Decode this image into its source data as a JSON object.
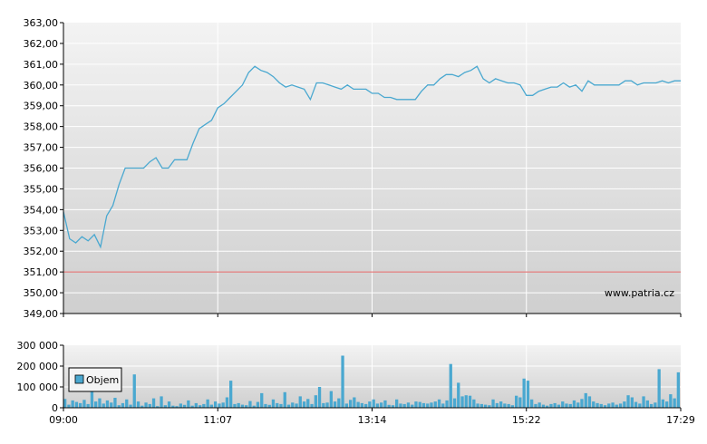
{
  "watermark": "www.patria.cz",
  "chart_data": [
    {
      "type": "line",
      "title": "",
      "xlabel": "",
      "ylabel": "",
      "ylim": [
        349,
        363
      ],
      "yticks": [
        "363,00",
        "362,00",
        "361,00",
        "360,00",
        "359,00",
        "358,00",
        "357,00",
        "356,00",
        "355,00",
        "354,00",
        "353,00",
        "352,00",
        "351,00",
        "350,00",
        "349,00"
      ],
      "xticks": [
        "09:00",
        "11:07",
        "13:14",
        "15:22",
        "17:29"
      ],
      "grid": true,
      "reference_line": {
        "value": 351.0,
        "color": "#e06060"
      },
      "series": [
        {
          "name": "",
          "color": "#4aa8d0",
          "x": [
            0,
            0.01,
            0.02,
            0.03,
            0.04,
            0.05,
            0.06,
            0.07,
            0.08,
            0.09,
            0.1,
            0.11,
            0.12,
            0.13,
            0.14,
            0.15,
            0.16,
            0.17,
            0.18,
            0.19,
            0.2,
            0.21,
            0.22,
            0.23,
            0.24,
            0.25,
            0.26,
            0.27,
            0.28,
            0.29,
            0.3,
            0.31,
            0.32,
            0.33,
            0.34,
            0.35,
            0.36,
            0.37,
            0.38,
            0.39,
            0.4,
            0.41,
            0.42,
            0.43,
            0.44,
            0.45,
            0.46,
            0.47,
            0.48,
            0.49,
            0.5,
            0.51,
            0.52,
            0.53,
            0.54,
            0.55,
            0.56,
            0.57,
            0.58,
            0.59,
            0.6,
            0.61,
            0.62,
            0.63,
            0.64,
            0.65,
            0.66,
            0.67,
            0.68,
            0.69,
            0.7,
            0.71,
            0.72,
            0.73,
            0.74,
            0.75,
            0.76,
            0.77,
            0.78,
            0.79,
            0.8,
            0.81,
            0.82,
            0.83,
            0.84,
            0.85,
            0.86,
            0.87,
            0.88,
            0.89,
            0.9,
            0.91,
            0.92,
            0.93,
            0.94,
            0.95,
            0.96,
            0.97,
            0.98,
            0.99,
            1.0
          ],
          "values": [
            353.9,
            352.6,
            352.4,
            352.7,
            352.5,
            352.8,
            352.2,
            353.7,
            354.2,
            355.2,
            356.0,
            356.0,
            356.0,
            356.0,
            356.3,
            356.5,
            356.0,
            356.0,
            356.4,
            356.4,
            356.4,
            357.2,
            357.9,
            358.1,
            358.3,
            358.9,
            359.1,
            359.4,
            359.7,
            360.0,
            360.6,
            360.9,
            360.7,
            360.6,
            360.4,
            360.1,
            359.9,
            360.0,
            359.9,
            359.8,
            359.3,
            360.1,
            360.1,
            360.0,
            359.9,
            359.8,
            360.0,
            359.8,
            359.8,
            359.8,
            359.6,
            359.6,
            359.4,
            359.4,
            359.3,
            359.3,
            359.3,
            359.3,
            359.7,
            360.0,
            360.0,
            360.3,
            360.5,
            360.5,
            360.4,
            360.6,
            360.7,
            360.9,
            360.3,
            360.1,
            360.3,
            360.2,
            360.1,
            360.1,
            360.0,
            359.5,
            359.5,
            359.7,
            359.8,
            359.9,
            359.9,
            360.1,
            359.9,
            360.0,
            359.7,
            360.2,
            360.0,
            360.0,
            360.0,
            360.0,
            360.0,
            360.2,
            360.2,
            360.0,
            360.1,
            360.1,
            360.1,
            360.2,
            360.1,
            360.2,
            360.2
          ]
        }
      ]
    },
    {
      "type": "bar",
      "title": "",
      "xlabel": "",
      "ylabel": "",
      "ylim": [
        0,
        300000
      ],
      "yticks": [
        "300 000",
        "200 000",
        "100 000",
        "0"
      ],
      "xticks": [
        "09:00",
        "11:07",
        "13:14",
        "15:22",
        "17:29"
      ],
      "grid": true,
      "legend": {
        "position": "left",
        "entries": [
          "Objem"
        ]
      },
      "series": [
        {
          "name": "Objem",
          "color": "#4aa8d0",
          "values": [
            42000,
            15000,
            35000,
            28000,
            22000,
            38000,
            18000,
            82000,
            30000,
            45000,
            20000,
            35000,
            25000,
            48000,
            12000,
            22000,
            40000,
            15000,
            160000,
            30000,
            10000,
            25000,
            18000,
            45000,
            8000,
            55000,
            12000,
            30000,
            10000,
            8000,
            20000,
            14000,
            35000,
            10000,
            22000,
            12000,
            18000,
            40000,
            15000,
            30000,
            20000,
            25000,
            50000,
            130000,
            18000,
            22000,
            15000,
            12000,
            32000,
            10000,
            28000,
            70000,
            18000,
            14000,
            40000,
            22000,
            18000,
            75000,
            15000,
            25000,
            20000,
            55000,
            30000,
            42000,
            18000,
            60000,
            100000,
            22000,
            25000,
            80000,
            30000,
            45000,
            250000,
            20000,
            38000,
            50000,
            28000,
            22000,
            18000,
            30000,
            40000,
            20000,
            25000,
            35000,
            14000,
            12000,
            40000,
            20000,
            18000,
            25000,
            15000,
            30000,
            28000,
            22000,
            20000,
            25000,
            30000,
            40000,
            20000,
            35000,
            210000,
            45000,
            120000,
            55000,
            60000,
            58000,
            40000,
            20000,
            18000,
            15000,
            12000,
            40000,
            22000,
            30000,
            20000,
            18000,
            12000,
            58000,
            50000,
            140000,
            130000,
            40000,
            18000,
            25000,
            15000,
            10000,
            18000,
            22000,
            15000,
            30000,
            20000,
            18000,
            35000,
            25000,
            42000,
            70000,
            55000,
            30000,
            22000,
            18000,
            12000,
            20000,
            25000,
            15000,
            20000,
            30000,
            60000,
            50000,
            28000,
            20000,
            55000,
            35000,
            18000,
            25000,
            185000,
            40000,
            30000,
            65000,
            45000,
            170000
          ]
        }
      ]
    }
  ]
}
